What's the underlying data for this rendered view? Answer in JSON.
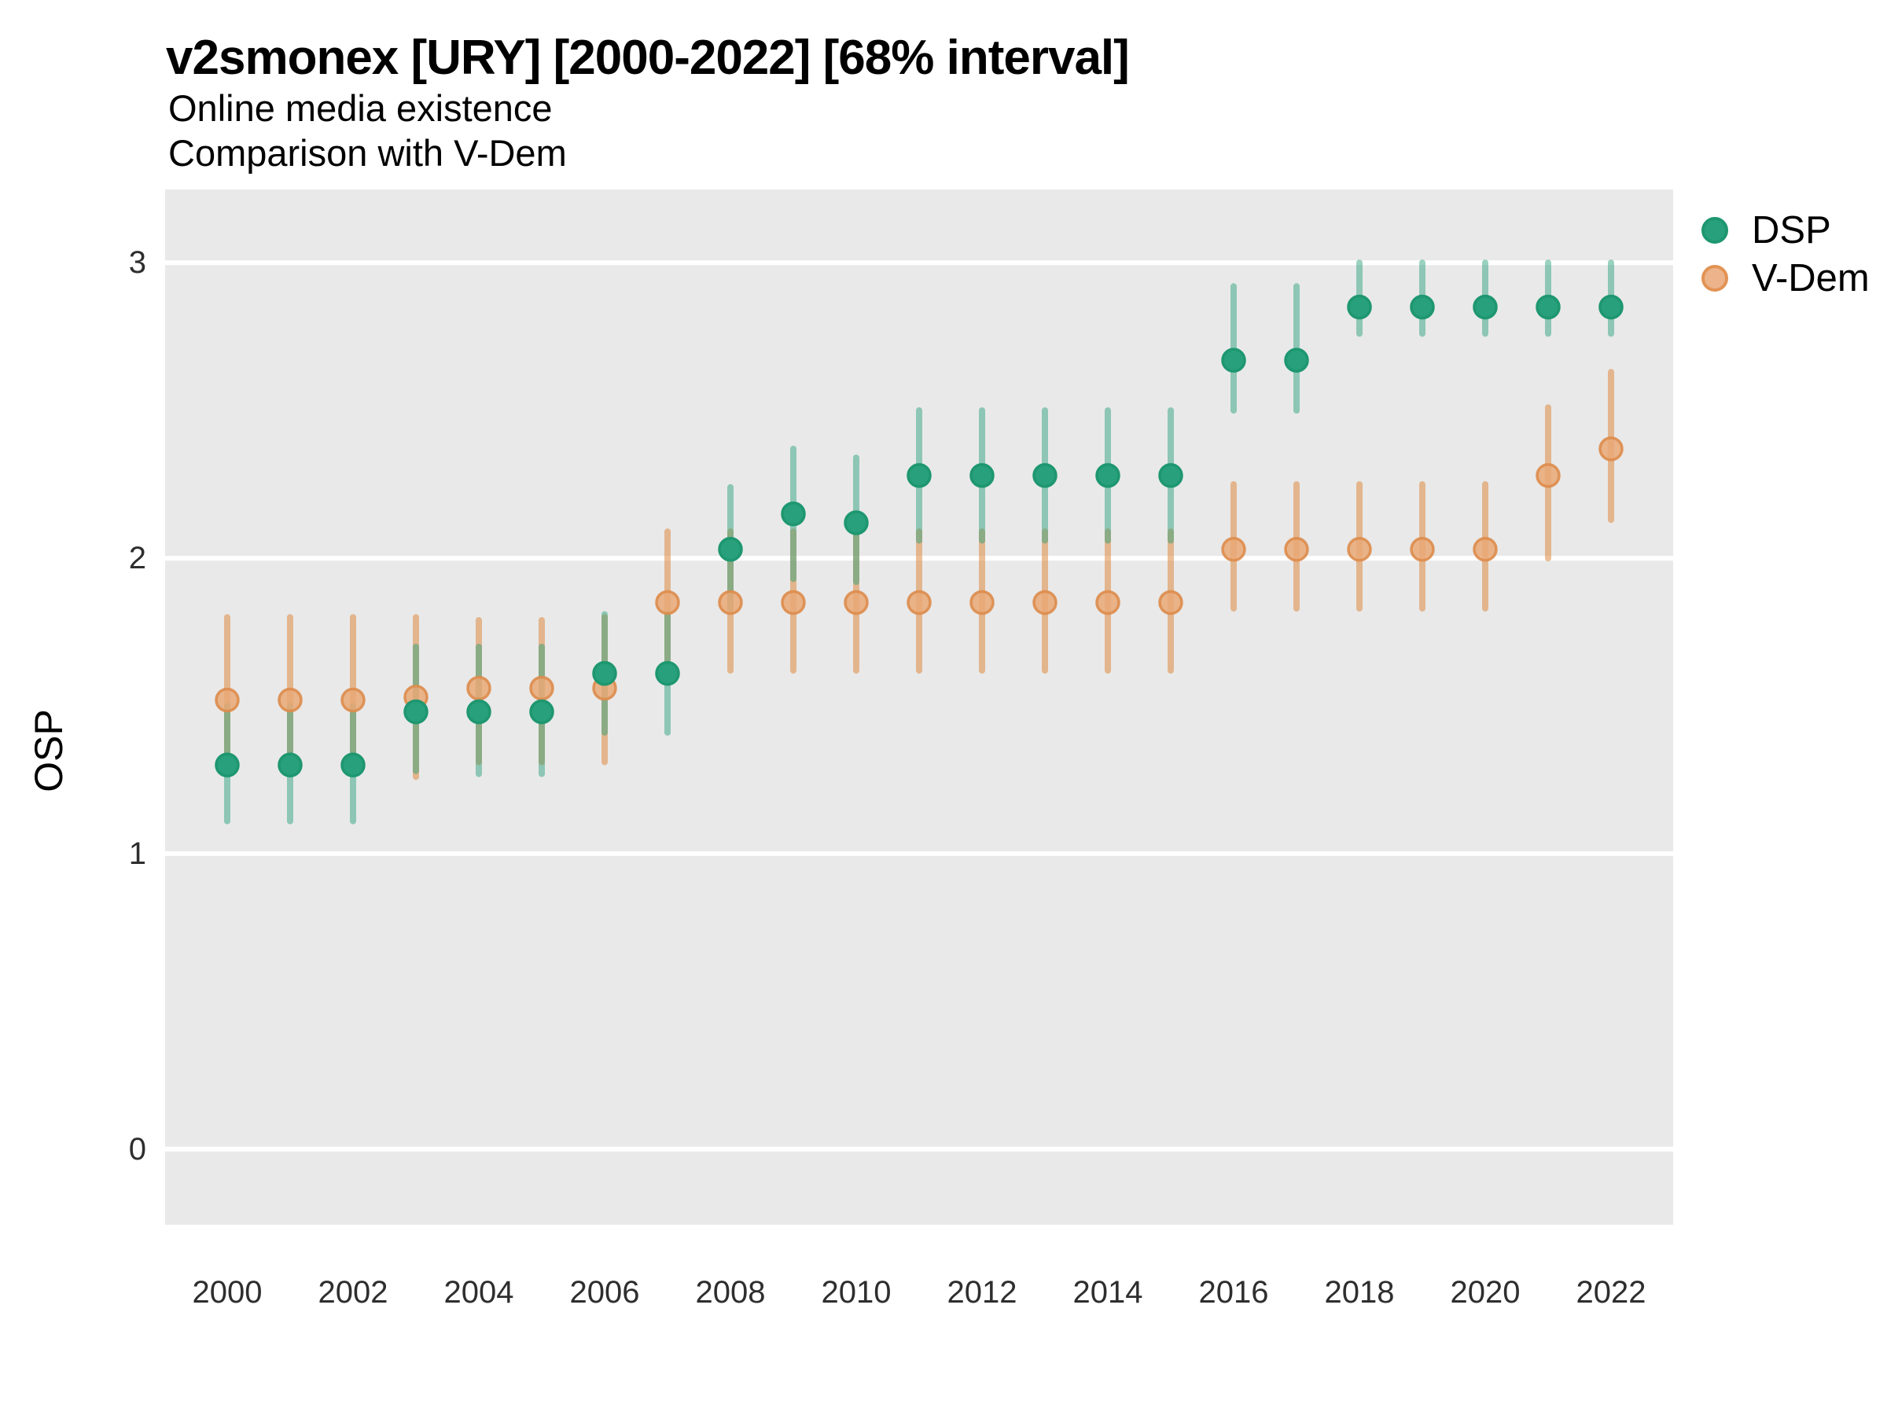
{
  "header": {
    "title": "v2smonex [URY] [2000-2022] [68% interval]",
    "subtitle1": "Online media existence",
    "subtitle2": "Comparison with V-Dem"
  },
  "y_axis": {
    "label": "OSP",
    "ticks": [
      3,
      2,
      1,
      0
    ]
  },
  "x_axis": {
    "ticks": [
      2000,
      2002,
      2004,
      2006,
      2008,
      2010,
      2012,
      2014,
      2016,
      2018,
      2020,
      2022
    ]
  },
  "legend": [
    {
      "id": "dsp",
      "label": "DSP"
    },
    {
      "id": "vdem",
      "label": "V-Dem"
    }
  ],
  "colors": {
    "panel_bg": "#e9e9e9",
    "gridline": "#ffffff",
    "dsp_dot": "#27a07b",
    "dsp_dot_stroke": "#1e9770",
    "dsp_line": "rgba(41,160,123,0.48)",
    "vdem_dot": "#e9a876",
    "vdem_dot_stroke": "#dd8c4c",
    "vdem_line": "rgba(223,138,66,0.55)",
    "axis_text": "#2e2e2e",
    "title_text": "#000000"
  },
  "chart_data": {
    "type": "pointrange",
    "title": "v2smonex [URY] [2000-2022] [68% interval]",
    "subtitle": [
      "Online media existence",
      "Comparison with V-Dem"
    ],
    "interval": "68%",
    "xlabel": "",
    "ylabel": "OSP",
    "ylim": [
      -0.26,
      3.25
    ],
    "grid": "white major horizontal gridlines on gray panel",
    "legend_position": "right",
    "x": [
      2000,
      2001,
      2002,
      2003,
      2004,
      2005,
      2006,
      2007,
      2008,
      2009,
      2010,
      2011,
      2012,
      2013,
      2014,
      2015,
      2016,
      2017,
      2018,
      2019,
      2020,
      2021,
      2022
    ],
    "series": [
      {
        "name": "DSP",
        "values": [
          1.3,
          1.3,
          1.3,
          1.48,
          1.48,
          1.48,
          1.61,
          1.61,
          2.03,
          2.15,
          2.12,
          2.28,
          2.28,
          2.28,
          2.28,
          2.28,
          2.67,
          2.67,
          2.85,
          2.85,
          2.85,
          2.85,
          2.85
        ],
        "lo": [
          1.11,
          1.11,
          1.11,
          1.28,
          1.27,
          1.27,
          1.41,
          1.41,
          1.83,
          1.93,
          1.92,
          2.06,
          2.06,
          2.06,
          2.06,
          2.06,
          2.5,
          2.5,
          2.76,
          2.76,
          2.76,
          2.76,
          2.76
        ],
        "hi": [
          1.5,
          1.5,
          1.5,
          1.7,
          1.7,
          1.7,
          1.81,
          1.81,
          2.24,
          2.37,
          2.34,
          2.5,
          2.5,
          2.5,
          2.5,
          2.5,
          2.92,
          2.92,
          3.0,
          3.0,
          3.0,
          3.0,
          3.0
        ]
      },
      {
        "name": "V-Dem",
        "values": [
          1.52,
          1.52,
          1.52,
          1.53,
          1.56,
          1.56,
          1.56,
          1.85,
          1.85,
          1.85,
          1.85,
          1.85,
          1.85,
          1.85,
          1.85,
          1.85,
          2.03,
          2.03,
          2.03,
          2.03,
          2.03,
          2.28,
          2.37
        ],
        "lo": [
          1.28,
          1.28,
          1.28,
          1.26,
          1.31,
          1.31,
          1.31,
          1.62,
          1.62,
          1.62,
          1.62,
          1.62,
          1.62,
          1.62,
          1.62,
          1.62,
          1.83,
          1.83,
          1.83,
          1.83,
          1.83,
          2.0,
          2.13
        ],
        "hi": [
          1.8,
          1.8,
          1.8,
          1.8,
          1.79,
          1.79,
          1.8,
          2.09,
          2.09,
          2.09,
          2.09,
          2.09,
          2.09,
          2.09,
          2.09,
          2.09,
          2.25,
          2.25,
          2.25,
          2.25,
          2.25,
          2.51,
          2.63
        ]
      }
    ]
  }
}
